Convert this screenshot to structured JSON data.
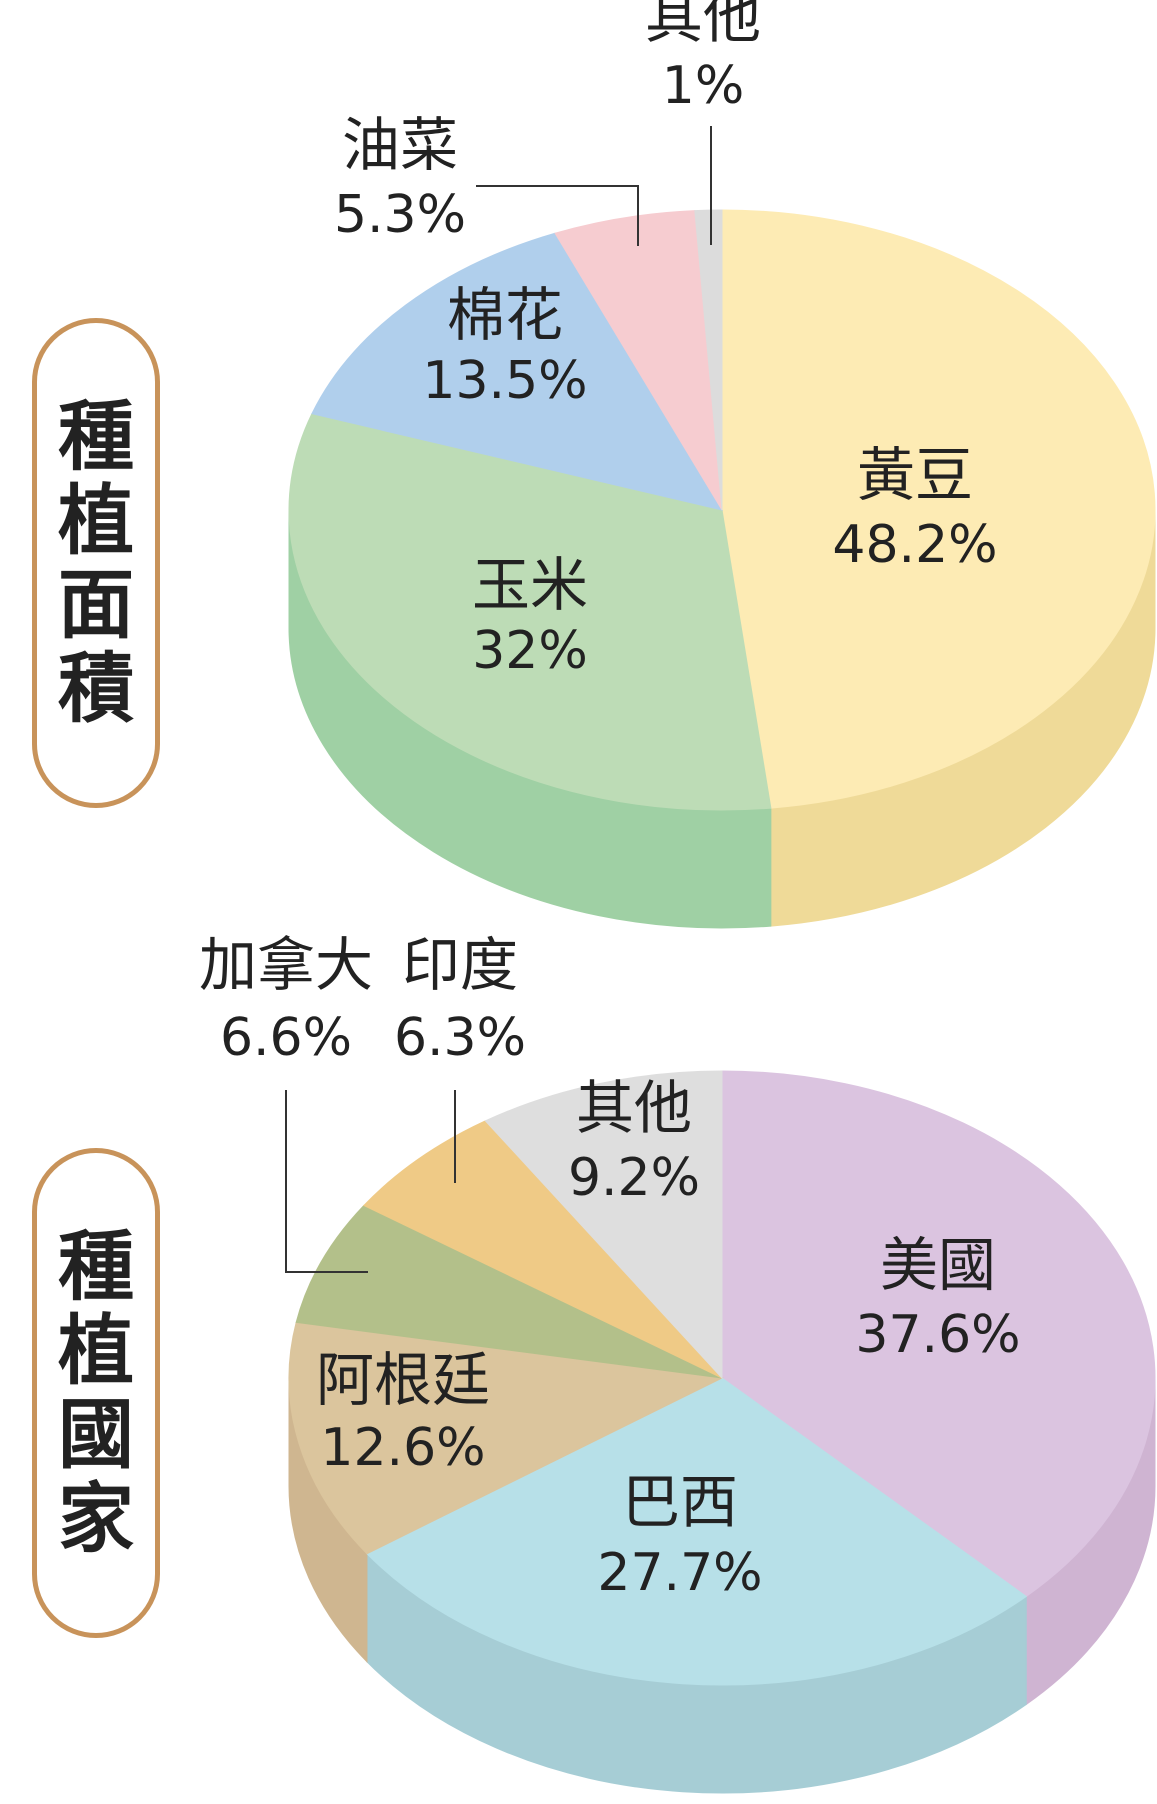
{
  "chart_data": [
    {
      "type": "pie",
      "title": "種植面積",
      "labels": [
        "黃豆",
        "玉米",
        "棉花",
        "油菜",
        "其他"
      ],
      "values": [
        48.2,
        32,
        13.5,
        5.3,
        1
      ],
      "value_labels": [
        "48.2%",
        "32%",
        "13.5%",
        "5.3%",
        "1%"
      ],
      "colors": [
        "#fdebb4",
        "#bddcb6",
        "#b0cfec",
        "#f6ccd0",
        "#dcdcdc"
      ],
      "side_colors": [
        "#efda98",
        "#9fd0a4",
        "#96b9d7",
        "#e6b1b6",
        "#c6c6c6"
      ]
    },
    {
      "type": "pie",
      "title": "種植國家",
      "labels": [
        "美國",
        "巴西",
        "阿根廷",
        "加拿大",
        "印度",
        "其他"
      ],
      "values": [
        37.6,
        27.7,
        12.6,
        6.6,
        6.3,
        9.2
      ],
      "value_labels": [
        "37.6%",
        "27.7%",
        "12.6%",
        "6.6%",
        "6.3%",
        "9.2%"
      ],
      "colors": [
        "#dbc4e0",
        "#b7e0e8",
        "#dbc59d",
        "#b3c08a",
        "#efca86",
        "#dedede"
      ],
      "side_colors": [
        "#cfb4d2",
        "#a6cdd5",
        "#cfb690",
        "#a2ae7b",
        "#dcb677",
        "#cacaca"
      ]
    }
  ],
  "tags": [
    {
      "chars": [
        "種",
        "植",
        "面",
        "積"
      ]
    },
    {
      "chars": [
        "種",
        "植",
        "國",
        "家"
      ]
    }
  ]
}
